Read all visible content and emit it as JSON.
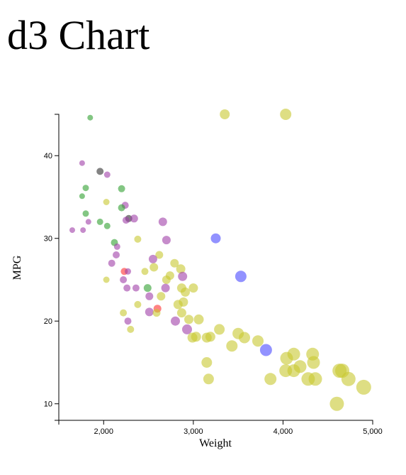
{
  "page": {
    "title": "d3 Chart"
  },
  "chart_data": {
    "type": "scatter",
    "title": "d3 Chart",
    "xlabel": "Weight",
    "ylabel": "MPG",
    "xlim": [
      1500,
      5000
    ],
    "ylim": [
      8,
      45
    ],
    "xticks": [
      2000,
      3000,
      4000,
      5000
    ],
    "xtick_labels": [
      "2,000",
      "3,000",
      "4,000",
      "5,000"
    ],
    "yticks": [
      10,
      20,
      30,
      40
    ],
    "ytick_labels": [
      "10",
      "20",
      "30",
      "40"
    ],
    "grid": false,
    "legend": "none",
    "colors": {
      "yellow": "#c8c830",
      "purple": "#a040a8",
      "green": "#30a030",
      "blue": "#4a4aff",
      "red": "#ff3030",
      "dark": "#303030"
    },
    "points": [
      {
        "x": 3350,
        "y": 45.0,
        "r": 7,
        "c": "yellow"
      },
      {
        "x": 4030,
        "y": 45.0,
        "r": 8,
        "c": "yellow"
      },
      {
        "x": 1850,
        "y": 44.6,
        "r": 4,
        "c": "green"
      },
      {
        "x": 1760,
        "y": 39.1,
        "r": 4,
        "c": "purple"
      },
      {
        "x": 1960,
        "y": 38.1,
        "r": 5,
        "c": "dark"
      },
      {
        "x": 2040,
        "y": 37.7,
        "r": 4.5,
        "c": "purple"
      },
      {
        "x": 1800,
        "y": 36.1,
        "r": 4.5,
        "c": "green"
      },
      {
        "x": 2200,
        "y": 36.0,
        "r": 5,
        "c": "green"
      },
      {
        "x": 1760,
        "y": 35.1,
        "r": 4,
        "c": "green"
      },
      {
        "x": 2030,
        "y": 34.4,
        "r": 4.5,
        "c": "yellow"
      },
      {
        "x": 2240,
        "y": 34.0,
        "r": 5,
        "c": "purple"
      },
      {
        "x": 2200,
        "y": 33.7,
        "r": 5,
        "c": "green"
      },
      {
        "x": 1800,
        "y": 33.0,
        "r": 4.5,
        "c": "green"
      },
      {
        "x": 2280,
        "y": 32.4,
        "r": 5,
        "c": "dark"
      },
      {
        "x": 2340,
        "y": 32.4,
        "r": 5.5,
        "c": "purple"
      },
      {
        "x": 2250,
        "y": 32.2,
        "r": 5,
        "c": "purple"
      },
      {
        "x": 1830,
        "y": 32.0,
        "r": 4,
        "c": "purple"
      },
      {
        "x": 1960,
        "y": 32.0,
        "r": 4.5,
        "c": "green"
      },
      {
        "x": 2660,
        "y": 32.0,
        "r": 6,
        "c": "purple"
      },
      {
        "x": 2040,
        "y": 31.5,
        "r": 4.5,
        "c": "green"
      },
      {
        "x": 1650,
        "y": 31.0,
        "r": 4,
        "c": "purple"
      },
      {
        "x": 1770,
        "y": 31.0,
        "r": 4,
        "c": "purple"
      },
      {
        "x": 3250,
        "y": 30.0,
        "r": 7,
        "c": "blue"
      },
      {
        "x": 2380,
        "y": 29.9,
        "r": 5,
        "c": "yellow"
      },
      {
        "x": 2700,
        "y": 29.8,
        "r": 6,
        "c": "purple"
      },
      {
        "x": 2120,
        "y": 29.5,
        "r": 5,
        "c": "green"
      },
      {
        "x": 2150,
        "y": 29.0,
        "r": 4.5,
        "c": "purple"
      },
      {
        "x": 2140,
        "y": 28.0,
        "r": 5,
        "c": "purple"
      },
      {
        "x": 2620,
        "y": 28.0,
        "r": 5.5,
        "c": "yellow"
      },
      {
        "x": 2550,
        "y": 27.5,
        "r": 6,
        "c": "purple"
      },
      {
        "x": 2090,
        "y": 27.0,
        "r": 5,
        "c": "purple"
      },
      {
        "x": 2790,
        "y": 27.0,
        "r": 6,
        "c": "yellow"
      },
      {
        "x": 2560,
        "y": 26.5,
        "r": 6,
        "c": "yellow"
      },
      {
        "x": 2860,
        "y": 26.3,
        "r": 6.5,
        "c": "yellow"
      },
      {
        "x": 2230,
        "y": 26.0,
        "r": 5,
        "c": "red"
      },
      {
        "x": 2270,
        "y": 26.0,
        "r": 4.5,
        "c": "purple"
      },
      {
        "x": 2460,
        "y": 26.0,
        "r": 5,
        "c": "yellow"
      },
      {
        "x": 2740,
        "y": 25.5,
        "r": 6,
        "c": "yellow"
      },
      {
        "x": 3530,
        "y": 25.4,
        "r": 8,
        "c": "blue"
      },
      {
        "x": 2880,
        "y": 25.4,
        "r": 6.5,
        "c": "purple"
      },
      {
        "x": 2700,
        "y": 25.0,
        "r": 6,
        "c": "yellow"
      },
      {
        "x": 2220,
        "y": 25.0,
        "r": 5,
        "c": "purple"
      },
      {
        "x": 2030,
        "y": 25.0,
        "r": 4.5,
        "c": "yellow"
      },
      {
        "x": 2260,
        "y": 24.0,
        "r": 5,
        "c": "purple"
      },
      {
        "x": 2360,
        "y": 24.0,
        "r": 5,
        "c": "purple"
      },
      {
        "x": 2490,
        "y": 24.0,
        "r": 5.5,
        "c": "green"
      },
      {
        "x": 2690,
        "y": 24.0,
        "r": 6,
        "c": "purple"
      },
      {
        "x": 2870,
        "y": 24.0,
        "r": 6.5,
        "c": "yellow"
      },
      {
        "x": 2910,
        "y": 23.5,
        "r": 6.5,
        "c": "yellow"
      },
      {
        "x": 3000,
        "y": 24.0,
        "r": 6.5,
        "c": "yellow"
      },
      {
        "x": 2510,
        "y": 23.0,
        "r": 5.5,
        "c": "purple"
      },
      {
        "x": 2640,
        "y": 23.0,
        "r": 6,
        "c": "yellow"
      },
      {
        "x": 2890,
        "y": 22.3,
        "r": 6.5,
        "c": "yellow"
      },
      {
        "x": 2380,
        "y": 22.0,
        "r": 5,
        "c": "yellow"
      },
      {
        "x": 2830,
        "y": 22.0,
        "r": 6.5,
        "c": "yellow"
      },
      {
        "x": 2600,
        "y": 21.5,
        "r": 5.5,
        "c": "red"
      },
      {
        "x": 2510,
        "y": 21.1,
        "r": 6,
        "c": "purple"
      },
      {
        "x": 2220,
        "y": 21.0,
        "r": 5,
        "c": "yellow"
      },
      {
        "x": 2590,
        "y": 21.0,
        "r": 5.5,
        "c": "yellow"
      },
      {
        "x": 2870,
        "y": 21.0,
        "r": 6.5,
        "c": "yellow"
      },
      {
        "x": 2270,
        "y": 20.0,
        "r": 5,
        "c": "purple"
      },
      {
        "x": 2800,
        "y": 20.0,
        "r": 6.5,
        "c": "purple"
      },
      {
        "x": 2950,
        "y": 20.2,
        "r": 6.5,
        "c": "yellow"
      },
      {
        "x": 3060,
        "y": 20.2,
        "r": 7,
        "c": "yellow"
      },
      {
        "x": 2300,
        "y": 19.0,
        "r": 5,
        "c": "yellow"
      },
      {
        "x": 2930,
        "y": 19.0,
        "r": 7,
        "c": "purple"
      },
      {
        "x": 3290,
        "y": 19.0,
        "r": 7.5,
        "c": "yellow"
      },
      {
        "x": 3500,
        "y": 18.5,
        "r": 8,
        "c": "yellow"
      },
      {
        "x": 2990,
        "y": 18.0,
        "r": 7,
        "c": "yellow"
      },
      {
        "x": 3030,
        "y": 18.1,
        "r": 7,
        "c": "yellow"
      },
      {
        "x": 3150,
        "y": 18.0,
        "r": 7,
        "c": "yellow"
      },
      {
        "x": 3190,
        "y": 18.1,
        "r": 7,
        "c": "yellow"
      },
      {
        "x": 3570,
        "y": 18.0,
        "r": 8,
        "c": "yellow"
      },
      {
        "x": 3720,
        "y": 17.6,
        "r": 8,
        "c": "yellow"
      },
      {
        "x": 3430,
        "y": 17.0,
        "r": 8,
        "c": "yellow"
      },
      {
        "x": 3810,
        "y": 16.5,
        "r": 8.5,
        "c": "blue"
      },
      {
        "x": 4120,
        "y": 16.0,
        "r": 9,
        "c": "yellow"
      },
      {
        "x": 4330,
        "y": 16.0,
        "r": 9,
        "c": "yellow"
      },
      {
        "x": 4040,
        "y": 15.5,
        "r": 9,
        "c": "yellow"
      },
      {
        "x": 4340,
        "y": 15.0,
        "r": 9,
        "c": "yellow"
      },
      {
        "x": 3150,
        "y": 15.0,
        "r": 7.5,
        "c": "yellow"
      },
      {
        "x": 4190,
        "y": 14.5,
        "r": 9,
        "c": "yellow"
      },
      {
        "x": 4030,
        "y": 14.0,
        "r": 9,
        "c": "yellow"
      },
      {
        "x": 4120,
        "y": 14.0,
        "r": 9,
        "c": "yellow"
      },
      {
        "x": 4630,
        "y": 14.0,
        "r": 10,
        "c": "yellow"
      },
      {
        "x": 4660,
        "y": 14.0,
        "r": 10,
        "c": "yellow"
      },
      {
        "x": 4280,
        "y": 13.0,
        "r": 9.5,
        "c": "yellow"
      },
      {
        "x": 4360,
        "y": 13.0,
        "r": 9.5,
        "c": "yellow"
      },
      {
        "x": 4730,
        "y": 13.0,
        "r": 10,
        "c": "yellow"
      },
      {
        "x": 3860,
        "y": 13.0,
        "r": 8.5,
        "c": "yellow"
      },
      {
        "x": 3170,
        "y": 13.0,
        "r": 7.5,
        "c": "yellow"
      },
      {
        "x": 4900,
        "y": 12.0,
        "r": 10.5,
        "c": "yellow"
      },
      {
        "x": 4600,
        "y": 10.0,
        "r": 10,
        "c": "yellow"
      }
    ]
  }
}
